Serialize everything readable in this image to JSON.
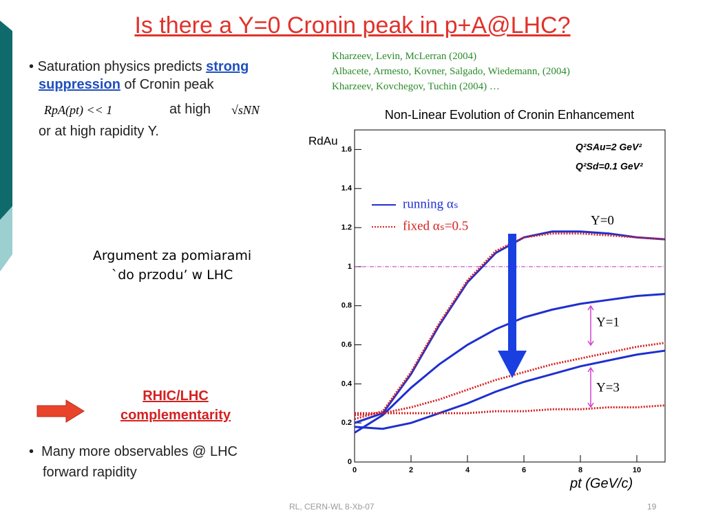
{
  "slide": {
    "title": "Is there a Y=0 Cronin peak in p+A@LHC?",
    "bullet1": {
      "start": "Saturation physics predicts ",
      "strong": "strong",
      "suppression": "suppression",
      "rest": " of Cronin peak",
      "formula": "RpA(pt) << 1",
      "at_high": "at high",
      "sqrt": "√sNN",
      "line3": "or at high rapidity Y."
    },
    "references": [
      "Kharzeev, Levin, McLerran (2004)",
      "Albacete, Armesto, Kovner, Salgado, Wiedemann, (2004)",
      "Kharzeev, Kovchegov, Tuchin (2004) …"
    ],
    "argument": [
      "Argument za pomiarami",
      "`do przodu’ w LHC"
    ],
    "complementarity": [
      "RHIC/LHC",
      "complementarity"
    ],
    "bullet2": [
      "Many more observables @ LHC",
      "forward rapidity"
    ],
    "footer": "RL, CERN-WL 8-Xb-07",
    "page": "19"
  },
  "chart_data": {
    "type": "line",
    "title": "Non-Linear Evolution of Cronin Enhancement",
    "ylabel": "RdAu",
    "xlabel": "pt (GeV/c)",
    "annotations": [
      "Q²SAu=2 GeV²",
      "Q²Sd=0.1 GeV²",
      "Y=0",
      "Y=1",
      "Y=3"
    ],
    "x": [
      0,
      1,
      2,
      3,
      4,
      5,
      6,
      7,
      8,
      9,
      10,
      11
    ],
    "xlim": [
      0,
      11
    ],
    "xticks": [
      0,
      2,
      4,
      6,
      8,
      10
    ],
    "ylim": [
      0,
      1.7
    ],
    "yticks": [
      0,
      0.2,
      0.4,
      0.6,
      0.8,
      1,
      1.2,
      1.4,
      1.6
    ],
    "hline": 1,
    "series": [
      {
        "name": "running αₛ",
        "color": "#1f2fd0",
        "style": "solid",
        "values": [
          0.2,
          0.25,
          0.45,
          0.7,
          0.92,
          1.07,
          1.15,
          1.18,
          1.18,
          1.17,
          1.15,
          1.14
        ]
      },
      {
        "name": "fixed αₛ=0.5",
        "color": "#d42020",
        "style": "dotted",
        "values": [
          0.22,
          0.26,
          0.46,
          0.71,
          0.93,
          1.08,
          1.15,
          1.17,
          1.17,
          1.16,
          1.15,
          1.14
        ]
      },
      {
        "color": "#1f2fd0",
        "style": "solid",
        "values": [
          0.15,
          0.24,
          0.38,
          0.5,
          0.6,
          0.68,
          0.74,
          0.78,
          0.81,
          0.83,
          0.85,
          0.86
        ]
      },
      {
        "color": "#d42020",
        "style": "dotted",
        "values": [
          0.24,
          0.25,
          0.28,
          0.32,
          0.37,
          0.42,
          0.46,
          0.5,
          0.53,
          0.56,
          0.59,
          0.61
        ]
      },
      {
        "color": "#1f2fd0",
        "style": "solid",
        "values": [
          0.18,
          0.17,
          0.2,
          0.25,
          0.3,
          0.36,
          0.41,
          0.45,
          0.49,
          0.52,
          0.55,
          0.57
        ]
      },
      {
        "color": "#d42020",
        "style": "dotted",
        "values": [
          0.25,
          0.25,
          0.25,
          0.25,
          0.25,
          0.26,
          0.26,
          0.27,
          0.27,
          0.28,
          0.28,
          0.29
        ]
      }
    ]
  }
}
